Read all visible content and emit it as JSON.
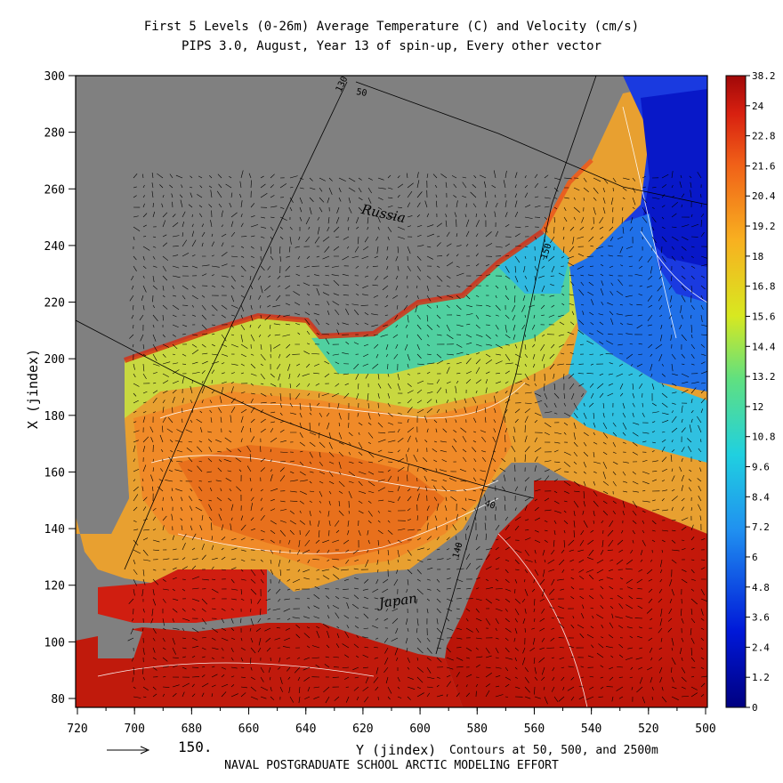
{
  "title_line1": "First 5 Levels (0-26m) Average Temperature (C) and Velocity (cm/s)",
  "title_line2": "PIPS 3.0, August, Year 13 of spin-up, Every other vector",
  "y_axis_label": "X (jindex)",
  "x_axis_label": "Y (jindex)",
  "x_ticks": [
    "720",
    "700",
    "680",
    "660",
    "640",
    "620",
    "600",
    "580",
    "560",
    "540",
    "520",
    "500"
  ],
  "y_ticks": [
    "300",
    "280",
    "260",
    "240",
    "220",
    "200",
    "180",
    "160",
    "140",
    "120",
    "100",
    "80"
  ],
  "colorbar_labels": [
    "38.2",
    "24",
    "22.8",
    "21.6",
    "20.4",
    "19.2",
    "18",
    "16.8",
    "15.6",
    "14.4",
    "13.2",
    "12",
    "10.8",
    "9.6",
    "8.4",
    "7.2",
    "6",
    "4.8",
    "3.6",
    "2.4",
    "1.2",
    "0"
  ],
  "contours_note": "Contours at 50, 500, and 2500m",
  "vector_scale_value": "150.",
  "credit": "NAVAL POSTGRADUATE SCHOOL ARCTIC MODELING EFFORT",
  "place_labels": {
    "russia": "Russia",
    "japan": "Japan"
  },
  "graticule_labels": {
    "lon130": "130",
    "lon150": "150",
    "lon140": "140",
    "lat50": "50",
    "lat40": "40"
  },
  "colors": {
    "land": "#808080",
    "cold": "#0a2ad8",
    "warm": "#c81e10",
    "mid": "#e8c020",
    "frame": "#000000"
  }
}
